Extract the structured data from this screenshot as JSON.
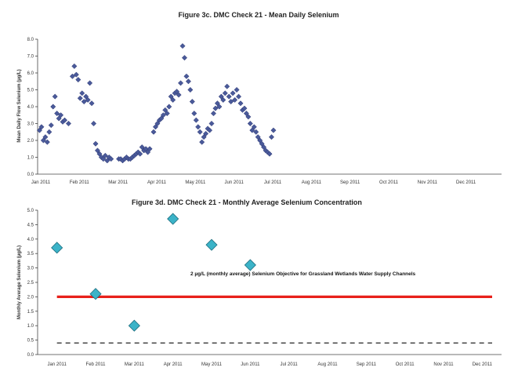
{
  "chart_data": [
    {
      "type": "scatter",
      "title": "Figure 3c. DMC Check 21 - Mean Daily Selenium",
      "xlabel": "",
      "ylabel": "Mean Daily Flow Selenium (µg/L)",
      "ylim": [
        0,
        8
      ],
      "yticks": [
        "0.0",
        "1.0",
        "2.0",
        "3.0",
        "4.0",
        "5.0",
        "6.0",
        "7.0",
        "8.0"
      ],
      "xlim": [
        0,
        12
      ],
      "xticks": [
        "Jan 2011",
        "Feb 2011",
        "Mar 2011",
        "Apr 2011",
        "May 2011",
        "Jun 2011",
        "Jul 2011",
        "Aug 2011",
        "Sep 2011",
        "Oct 2011",
        "Nov 2011",
        "Dec 2011"
      ],
      "marker_color": "#4a5a9a",
      "series": [
        {
          "x": [
            0.05,
            0.1,
            0.15,
            0.2,
            0.25,
            0.3,
            0.35,
            0.4,
            0.45,
            0.5,
            0.55,
            0.6,
            0.65,
            0.7,
            0.8,
            0.9,
            0.95,
            1.0,
            1.05,
            1.1,
            1.15,
            1.2,
            1.25,
            1.3,
            1.35,
            1.4,
            1.45,
            1.5,
            1.55,
            1.6,
            1.65,
            1.7,
            1.75,
            1.8,
            1.85,
            1.9,
            2.1,
            2.15,
            2.2,
            2.25,
            2.3,
            2.35,
            2.4,
            2.45,
            2.5,
            2.55,
            2.6,
            2.65,
            2.7,
            2.75,
            2.8,
            2.85,
            2.9,
            3.0,
            3.05,
            3.1,
            3.15,
            3.2,
            3.25,
            3.3,
            3.35,
            3.4,
            3.45,
            3.5,
            3.55,
            3.6,
            3.65,
            3.7,
            3.75,
            3.8,
            3.85,
            3.9,
            3.95,
            4.0,
            4.05,
            4.1,
            4.15,
            4.2,
            4.25,
            4.3,
            4.35,
            4.4,
            4.45,
            4.5,
            4.55,
            4.6,
            4.65,
            4.7,
            4.75,
            4.8,
            4.85,
            4.9,
            4.95,
            5.0,
            5.05,
            5.1,
            5.15,
            5.2,
            5.25,
            5.3,
            5.35,
            5.4,
            5.45,
            5.5,
            5.55,
            5.6,
            5.65,
            5.7,
            5.75,
            5.8,
            5.85,
            5.9,
            5.95,
            6.0,
            6.05,
            6.1
          ],
          "y": [
            2.6,
            2.8,
            2.0,
            2.2,
            1.9,
            2.5,
            2.9,
            4.0,
            4.6,
            3.6,
            3.3,
            3.5,
            3.1,
            3.2,
            3.0,
            5.8,
            6.4,
            5.9,
            5.6,
            4.5,
            4.8,
            4.3,
            4.6,
            4.4,
            5.4,
            4.2,
            3.0,
            1.8,
            1.4,
            1.2,
            1.0,
            0.9,
            1.1,
            0.8,
            1.0,
            0.9,
            0.9,
            0.9,
            0.8,
            0.9,
            1.0,
            0.9,
            0.9,
            1.0,
            1.1,
            1.2,
            1.3,
            1.2,
            1.6,
            1.4,
            1.5,
            1.3,
            1.5,
            2.5,
            2.8,
            3.0,
            3.2,
            3.3,
            3.5,
            3.8,
            3.6,
            4.0,
            4.6,
            4.4,
            4.8,
            4.9,
            4.7,
            5.4,
            7.6,
            6.9,
            5.8,
            5.5,
            5.0,
            4.3,
            3.6,
            3.2,
            2.8,
            2.5,
            1.9,
            2.2,
            2.4,
            2.7,
            2.6,
            3.0,
            3.6,
            3.9,
            4.2,
            4.0,
            4.6,
            4.4,
            4.8,
            5.2,
            4.6,
            4.3,
            4.8,
            4.4,
            5.0,
            4.6,
            4.2,
            3.8,
            3.9,
            3.6,
            3.4,
            3.0,
            2.6,
            2.8,
            2.5,
            2.2,
            2.0,
            1.8,
            1.6,
            1.4,
            1.3,
            1.2,
            2.2,
            2.6
          ]
        }
      ]
    },
    {
      "type": "scatter",
      "title": "Figure 3d. DMC Check 21 - Monthly Average Selenium Concentration",
      "xlabel": "",
      "ylabel": "Monthly Average Selenium (µg/L)",
      "ylim": [
        0,
        5
      ],
      "yticks": [
        "0.0",
        "0.5",
        "1.0",
        "1.5",
        "2.0",
        "2.5",
        "3.0",
        "3.5",
        "4.0",
        "4.5",
        "5.0"
      ],
      "xticks": [
        "Jan 2011",
        "Feb 2011",
        "Mar 2011",
        "Apr 2011",
        "May 2011",
        "Jun 2011",
        "Jul 2011",
        "Aug 2011",
        "Sep 2011",
        "Oct 2011",
        "Nov 2011",
        "Dec 2011"
      ],
      "marker_color": "#3bb3c8",
      "series": [
        {
          "x": [
            0,
            1,
            2,
            3,
            4,
            5
          ],
          "y": [
            3.7,
            2.1,
            1.0,
            4.7,
            3.8,
            3.1
          ]
        }
      ],
      "objective_line": {
        "value": 2.0,
        "color": "#e8201a"
      },
      "dashed_line": {
        "value": 0.4,
        "color": "#222222"
      },
      "annotation": "2 µg/L (monthly average) Selenium Objective for Grassland Wetlands Water Supply Channels"
    }
  ]
}
